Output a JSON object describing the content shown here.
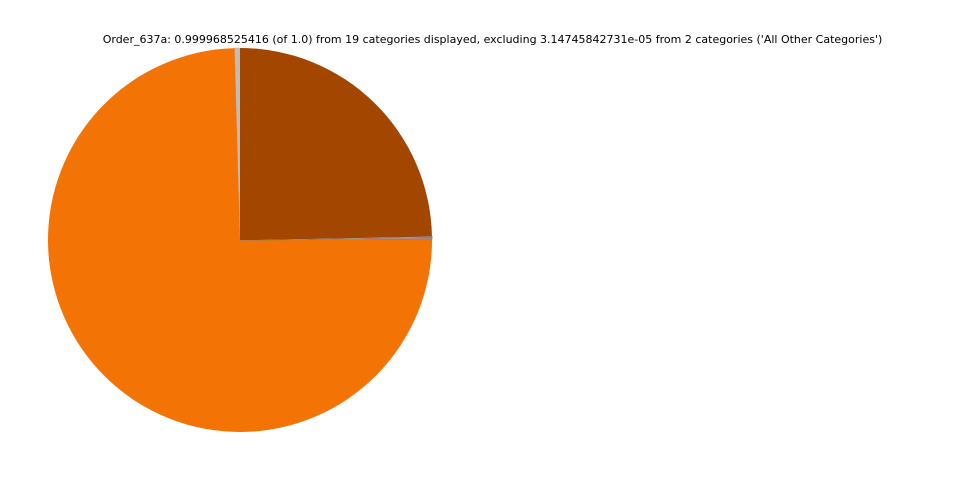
{
  "chart_data": {
    "type": "pie",
    "title": "Order_637a: 0.999968525416 (of 1.0) from 19 categories displayed, excluding 3.14745842731e-05 from 2 categories ('All Other Categories')",
    "start_angle_deg": 90,
    "direction": "counterclockwise",
    "legend": "none",
    "slices": [
      {
        "value": 0.0045,
        "color": "#bdbdbd"
      },
      {
        "value": 0.7455,
        "color": "#f37304"
      },
      {
        "value": 0.0004,
        "color": "#8c8c8c"
      },
      {
        "value": 0.0003,
        "color": "#2ca02c"
      },
      {
        "value": 0.0003,
        "color": "#d0a080"
      },
      {
        "value": 0.0002,
        "color": "#9467bd"
      },
      {
        "value": 0.0002,
        "color": "#e377c2"
      },
      {
        "value": 0.0002,
        "color": "#7f7f7f"
      },
      {
        "value": 0.0001,
        "color": "#bcbd22"
      },
      {
        "value": 0.0001,
        "color": "#17becf"
      },
      {
        "value": 0.0001,
        "color": "#1f77b4"
      },
      {
        "value": 0.0001,
        "color": "#ff7f0e"
      },
      {
        "value": 0.0001,
        "color": "#d62728"
      },
      {
        "value": 0.0001,
        "color": "#8c564b"
      },
      {
        "value": 0.0001,
        "color": "#aec7e8"
      },
      {
        "value": 0.0001,
        "color": "#98df8a"
      },
      {
        "value": 0.0001,
        "color": "#ff9896"
      },
      {
        "value": 0.0001,
        "color": "#555555"
      },
      {
        "value": 0.2466,
        "color": "#a34600"
      }
    ]
  }
}
